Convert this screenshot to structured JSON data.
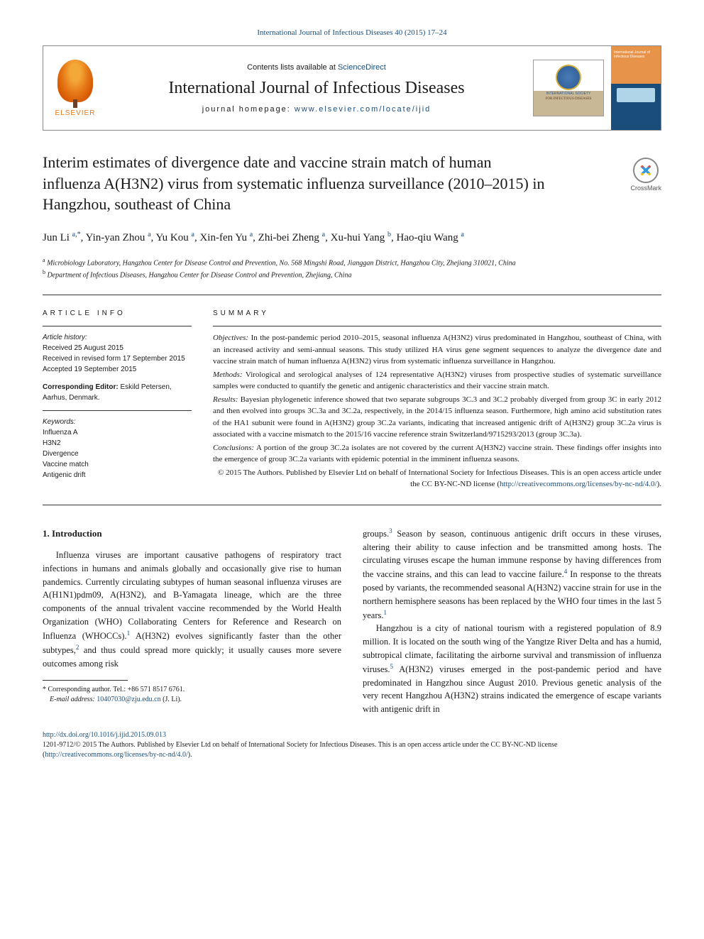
{
  "citation": {
    "prefix": "International Journal of Infectious Diseases 40 (2015) 17–24",
    "link_text": "International Journal of Infectious Diseases 40 (2015) 17–24"
  },
  "header": {
    "contents_prefix": "Contents lists available at ",
    "contents_link": "ScienceDirect",
    "journal": "International Journal of Infectious Diseases",
    "homepage_prefix": "journal homepage: ",
    "homepage_link": "www.elsevier.com/locate/ijid",
    "publisher": "ELSEVIER",
    "society_line1": "INTERNATIONAL SOCIETY",
    "society_line2": "FOR INFECTIOUS DISEASES",
    "cover_text": "International Journal of Infectious Diseases"
  },
  "crossmark": "CrossMark",
  "title": "Interim estimates of divergence date and vaccine strain match of human influenza A(H3N2) virus from systematic influenza surveillance (2010–2015) in Hangzhou, southeast of China",
  "authors_html": "Jun Li<sup>a,*</sup>, Yin-yan Zhou<sup>a</sup>, Yu Kou<sup>a</sup>, Xin-fen Yu<sup>a</sup>, Zhi-bei Zheng<sup>a</sup>, Xu-hui Yang<sup>b</sup>, Hao-qiu Wang<sup>a</sup>",
  "authors": [
    {
      "name": "Jun Li",
      "marks": "a,*"
    },
    {
      "name": "Yin-yan Zhou",
      "marks": "a"
    },
    {
      "name": "Yu Kou",
      "marks": "a"
    },
    {
      "name": "Xin-fen Yu",
      "marks": "a"
    },
    {
      "name": "Zhi-bei Zheng",
      "marks": "a"
    },
    {
      "name": "Xu-hui Yang",
      "marks": "b"
    },
    {
      "name": "Hao-qiu Wang",
      "marks": "a"
    }
  ],
  "affiliations": {
    "a": "Microbiology Laboratory, Hangzhou Center for Disease Control and Prevention, No. 568 Mingshi Road, Jianggan District, Hangzhou City, Zhejiang 310021, China",
    "b": "Department of Infectious Diseases, Hangzhou Center for Disease Control and Prevention, Zhejiang, China"
  },
  "info": {
    "heading": "ARTICLE INFO",
    "history_label": "Article history:",
    "received": "Received 25 August 2015",
    "revised": "Received in revised form 17 September 2015",
    "accepted": "Accepted 19 September 2015",
    "corr_editor_label": "Corresponding Editor:",
    "corr_editor": " Eskild Petersen, Aarhus, Denmark.",
    "keywords_label": "Keywords:",
    "keywords": [
      "Influenza A",
      "H3N2",
      "Divergence",
      "Vaccine match",
      "Antigenic drift"
    ]
  },
  "summary": {
    "heading": "SUMMARY",
    "objectives_label": "Objectives:",
    "objectives": " In the post-pandemic period 2010–2015, seasonal influenza A(H3N2) virus predominated in Hangzhou, southeast of China, with an increased activity and semi-annual seasons. This study utilized HA virus gene segment sequences to analyze the divergence date and vaccine strain match of human influenza A(H3N2) virus from systematic influenza surveillance in Hangzhou.",
    "methods_label": "Methods:",
    "methods": " Virological and serological analyses of 124 representative A(H3N2) viruses from prospective studies of systematic surveillance samples were conducted to quantify the genetic and antigenic characteristics and their vaccine strain match.",
    "results_label": "Results:",
    "results": " Bayesian phylogenetic inference showed that two separate subgroups 3C.3 and 3C.2 probably diverged from group 3C in early 2012 and then evolved into groups 3C.3a and 3C.2a, respectively, in the 2014/15 influenza season. Furthermore, high amino acid substitution rates of the HA1 subunit were found in A(H3N2) group 3C.2a variants, indicating that increased antigenic drift of A(H3N2) group 3C.2a virus is associated with a vaccine mismatch to the 2015/16 vaccine reference strain Switzerland/9715293/2013 (group 3C.3a).",
    "conclusions_label": "Conclusions:",
    "conclusions": " A portion of the group 3C.2a isolates are not covered by the current A(H3N2) vaccine strain. These findings offer insights into the emergence of group 3C.2a variants with epidemic potential in the imminent influenza seasons.",
    "copyright": "© 2015 The Authors. Published by Elsevier Ltd on behalf of International Society for Infectious Diseases. This is an open access article under the CC BY-NC-ND license (",
    "license_link": "http://creativecommons.org/licenses/by-nc-nd/4.0/",
    "copyright_suffix": ")."
  },
  "intro": {
    "heading": "1. Introduction",
    "p1_a": "Influenza viruses are important causative pathogens of respiratory tract infections in humans and animals globally and occasionally give rise to human pandemics. Currently circulating subtypes of human seasonal influenza viruses are A(H1N1)pdm09, A(H3N2), and B-Yamagata lineage, which are the three components of the annual trivalent vaccine recommended by the World Health Organization (WHO) Collaborating Centers for Reference and Research on Influenza (WHOCCs).",
    "p1_b": " A(H3N2) evolves significantly faster than the other subtypes,",
    "p1_c": " and thus could spread more quickly; it usually causes more severe outcomes among risk ",
    "p2_a": "groups.",
    "p2_b": " Season by season, continuous antigenic drift occurs in these viruses, altering their ability to cause infection and be transmitted among hosts. The circulating viruses escape the human immune response by having differences from the vaccine strains, and this can lead to vaccine failure.",
    "p2_c": " In response to the threats posed by variants, the recommended seasonal A(H3N2) vaccine strain for use in the northern hemisphere seasons has been replaced by the WHO four times in the last 5 years.",
    "p3_a": "Hangzhou is a city of national tourism with a registered population of 8.9 million. It is located on the south wing of the Yangtze River Delta and has a humid, subtropical climate, facilitating the airborne survival and transmission of influenza viruses.",
    "p3_b": " A(H3N2) viruses emerged in the post-pandemic period and have predominated in Hangzhou since August 2010. Previous genetic analysis of the very recent Hangzhou A(H3N2) strains indicated the emergence of escape variants with antigenic drift in",
    "refs": {
      "r1": "1",
      "r2": "2",
      "r3": "3",
      "r4": "4",
      "r5": "5"
    }
  },
  "footnote": {
    "corr_label": "* Corresponding author. Tel.: ",
    "corr_tel": "+86 571 8517 6761.",
    "email_label": "E-mail address: ",
    "email": "10407030@zju.edu.cn",
    "email_suffix": " (J. Li)."
  },
  "footer": {
    "doi": "http://dx.doi.org/10.1016/j.ijid.2015.09.013",
    "issn_line_prefix": "1201-9712/",
    "issn_line": "© 2015 The Authors. Published by Elsevier Ltd on behalf of International Society for Infectious Diseases. This is an open access article under the CC BY-NC-ND license (",
    "issn_link": "http://creativecommons.org/licenses/by-nc-nd/4.0/",
    "issn_suffix": ")."
  },
  "colors": {
    "link": "#1a4d7a",
    "elsevier_orange": "#e67817",
    "text": "#1a1a1a"
  }
}
